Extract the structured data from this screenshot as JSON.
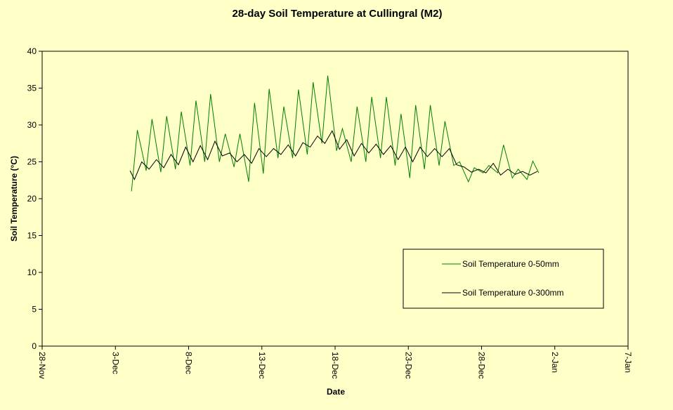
{
  "chart_data": {
    "type": "line",
    "title": "28-day Soil Temperature at Cullingral (M2)",
    "xlabel": "Date",
    "ylabel": "Soil Temperature (°C)",
    "xlim": [
      0,
      40
    ],
    "xticks": [
      {
        "value": 0,
        "label": "28-Nov"
      },
      {
        "value": 5,
        "label": "3-Dec"
      },
      {
        "value": 10,
        "label": "8-Dec"
      },
      {
        "value": 15,
        "label": "13-Dec"
      },
      {
        "value": 20,
        "label": "18-Dec"
      },
      {
        "value": 25,
        "label": "23-Dec"
      },
      {
        "value": 30,
        "label": "28-Dec"
      },
      {
        "value": 35,
        "label": "2-Jan"
      },
      {
        "value": 40,
        "label": "7-Jan"
      }
    ],
    "ylim": [
      0,
      40
    ],
    "yticks": [
      0,
      5,
      10,
      15,
      20,
      25,
      30,
      35,
      40
    ],
    "grid": false,
    "legend": "lower-right",
    "series": [
      {
        "name": "Soil Temperature 0-50mm",
        "color": "#008000",
        "x": [
          6.1,
          6.5,
          7.1,
          7.5,
          8.1,
          8.5,
          9.1,
          9.5,
          10.1,
          10.5,
          11.1,
          11.5,
          12.1,
          12.5,
          13.1,
          13.5,
          14.1,
          14.5,
          15.1,
          15.5,
          16.1,
          16.5,
          17.1,
          17.5,
          18.1,
          18.5,
          19.1,
          19.5,
          20.1,
          20.5,
          21.1,
          21.5,
          22.1,
          22.5,
          23.1,
          23.5,
          24.1,
          24.5,
          25.1,
          25.5,
          26.1,
          26.5,
          27.1,
          27.5,
          28.1,
          28.5,
          29.1,
          29.5,
          30.1,
          30.5,
          31.1,
          31.5,
          32.1,
          32.5,
          33.1,
          33.5,
          33.9
        ],
        "values": [
          21,
          29.3,
          23.8,
          30.8,
          23.6,
          31.2,
          24,
          31.8,
          24.5,
          33.3,
          25,
          34.2,
          25,
          28.8,
          24.3,
          28.8,
          22.3,
          33,
          23.4,
          34.9,
          25.5,
          32.5,
          25.5,
          34.8,
          26,
          35.8,
          27.5,
          36.7,
          26.5,
          29.5,
          25,
          32.5,
          25,
          33.8,
          25.5,
          33.8,
          24.5,
          31.5,
          22.8,
          32.7,
          24,
          32.7,
          24.5,
          30.5,
          24.5,
          25,
          22.3,
          24.2,
          23.5,
          24.5,
          23.5,
          27.3,
          22.8,
          24,
          22.6,
          25.1,
          23.5
        ]
      },
      {
        "name": "Soil Temperature 0-300mm",
        "color": "#000000",
        "x": [
          6.0,
          6.3,
          6.8,
          7.3,
          7.8,
          8.3,
          8.8,
          9.3,
          9.8,
          10.3,
          10.8,
          11.3,
          11.8,
          12.3,
          12.8,
          13.3,
          13.8,
          14.3,
          14.8,
          15.3,
          15.8,
          16.3,
          16.8,
          17.3,
          17.8,
          18.3,
          18.8,
          19.3,
          19.8,
          20.3,
          20.8,
          21.3,
          21.8,
          22.3,
          22.8,
          23.3,
          23.8,
          24.3,
          24.8,
          25.3,
          25.8,
          26.3,
          26.8,
          27.3,
          27.8,
          28.3,
          28.8,
          29.3,
          29.8,
          30.3,
          30.8,
          31.3,
          31.8,
          32.3,
          32.8,
          33.3,
          33.8
        ],
        "values": [
          23.8,
          22.6,
          25,
          24,
          25.3,
          24.2,
          26,
          24.6,
          27,
          25,
          27.2,
          25.3,
          27.8,
          25.8,
          26.2,
          25,
          26,
          24.8,
          26.8,
          25.7,
          26.8,
          26,
          27.3,
          25.8,
          27.6,
          27,
          28.5,
          27.5,
          29.2,
          26.7,
          28,
          25.8,
          27.5,
          26.2,
          27.4,
          26,
          27.2,
          25.3,
          27,
          25,
          27,
          25.7,
          26.8,
          25.7,
          26.8,
          24.6,
          24.3,
          23.6,
          24,
          23.5,
          24.8,
          23.2,
          24,
          23.3,
          23.7,
          23.2,
          23.7
        ]
      }
    ]
  }
}
